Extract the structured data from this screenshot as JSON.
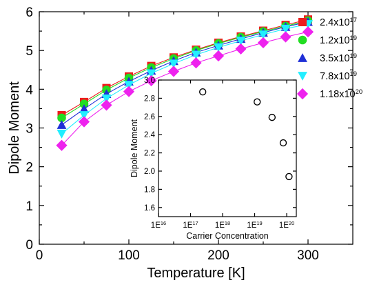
{
  "chart_data": [
    {
      "type": "line",
      "title": "",
      "xlabel": "Temperature [K]",
      "ylabel": "Dipole Moment",
      "xlim": [
        0,
        350
      ],
      "ylim": [
        0,
        6
      ],
      "xticks": [
        "0",
        "100",
        "200",
        "300"
      ],
      "yticks": [
        "0",
        "1",
        "2",
        "3",
        "4",
        "5",
        "6"
      ],
      "grid": false,
      "legend_position": "top-right",
      "x": [
        25,
        50,
        75,
        100,
        125,
        150,
        175,
        200,
        225,
        250,
        275,
        300
      ],
      "series": [
        {
          "name": "2.4x10^17",
          "label_base": "2.4x10",
          "label_exp": "17",
          "color": "#ee1c1c",
          "marker": "square",
          "values": [
            3.33,
            3.67,
            4.03,
            4.33,
            4.6,
            4.82,
            5.02,
            5.2,
            5.36,
            5.51,
            5.66,
            5.8
          ]
        },
        {
          "name": "1.2x10^19",
          "label_base": "1.2x10",
          "label_exp": "19",
          "color": "#22dd22",
          "marker": "circle",
          "values": [
            3.26,
            3.62,
            3.98,
            4.29,
            4.56,
            4.79,
            5.0,
            5.18,
            5.34,
            5.49,
            5.63,
            5.77
          ]
        },
        {
          "name": "3.5x10^19",
          "label_base": "3.5x10",
          "label_exp": "19",
          "color": "#1f2fd6",
          "marker": "triangle",
          "values": [
            3.08,
            3.49,
            3.88,
            4.2,
            4.48,
            4.73,
            4.95,
            5.13,
            5.3,
            5.46,
            5.61,
            5.74
          ]
        },
        {
          "name": "7.8x10^19",
          "label_base": "7.8x10",
          "label_exp": "19",
          "color": "#22eeff",
          "marker": "triangle-down",
          "values": [
            2.85,
            3.33,
            3.76,
            4.11,
            4.41,
            4.66,
            4.89,
            5.08,
            5.25,
            5.41,
            5.56,
            5.68
          ]
        },
        {
          "name": "1.18x10^20",
          "label_base": "1.18x10",
          "label_exp": "20",
          "color": "#ee22ee",
          "marker": "diamond",
          "values": [
            2.55,
            3.16,
            3.59,
            3.94,
            4.22,
            4.46,
            4.68,
            4.86,
            5.04,
            5.2,
            5.35,
            5.48
          ]
        }
      ]
    },
    {
      "type": "scatter",
      "title": "",
      "xlabel": "Carrier Concentration",
      "ylabel": "Dipole Moment",
      "xscale": "log",
      "xlim_log10": [
        16,
        20.3
      ],
      "ylim": [
        1.5,
        3.0
      ],
      "xticks": [
        {
          "base": "1E",
          "exp": "16"
        },
        {
          "base": "1E",
          "exp": "17"
        },
        {
          "base": "1E",
          "exp": "18"
        },
        {
          "base": "1E",
          "exp": "19"
        },
        {
          "base": "1E",
          "exp": "20"
        }
      ],
      "yticks": [
        "1.6",
        "1.8",
        "2.0",
        "2.2",
        "2.4",
        "2.6",
        "2.8",
        "3.0"
      ],
      "marker": "open-circle",
      "points": [
        {
          "x": 2.4e+17,
          "y": 2.87
        },
        {
          "x": 1.2e+19,
          "y": 2.76
        },
        {
          "x": 3.5e+19,
          "y": 2.59
        },
        {
          "x": 7.8e+19,
          "y": 2.31
        },
        {
          "x": 1.18e+20,
          "y": 1.94
        }
      ]
    }
  ]
}
